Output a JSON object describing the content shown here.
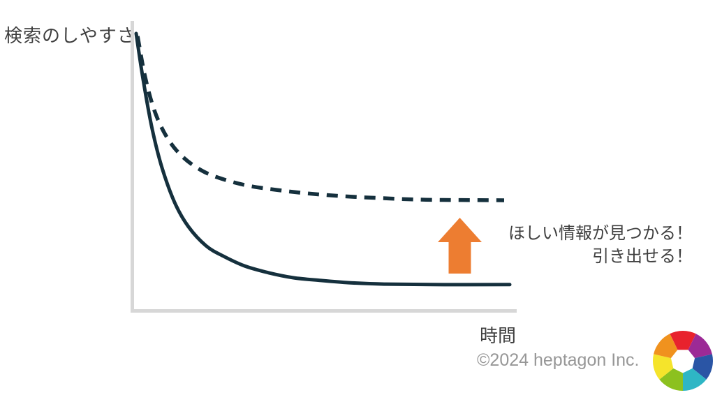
{
  "page": {
    "background": "#ffffff"
  },
  "chart_data": {
    "type": "line",
    "title": "",
    "xlabel": "時間",
    "ylabel": "検索のしやすさ",
    "x_range": [
      0,
      1
    ],
    "y_range": [
      0,
      1
    ],
    "axes_numeric": false,
    "tick_labels": "none",
    "grid": false,
    "legend": "none",
    "axis_color": "#d7d7d7",
    "series": [
      {
        "name": "solid-curve",
        "style": "solid",
        "color": "#15303d",
        "points": [
          [
            0,
            1.0
          ],
          [
            0.019,
            0.83
          ],
          [
            0.043,
            0.653
          ],
          [
            0.069,
            0.514
          ],
          [
            0.103,
            0.387
          ],
          [
            0.14,
            0.299
          ],
          [
            0.187,
            0.23
          ],
          [
            0.234,
            0.192
          ],
          [
            0.29,
            0.157
          ],
          [
            0.355,
            0.132
          ],
          [
            0.421,
            0.114
          ],
          [
            0.495,
            0.104
          ],
          [
            0.57,
            0.096
          ],
          [
            0.664,
            0.091
          ],
          [
            0.794,
            0.089
          ],
          [
            1.0,
            0.089
          ]
        ]
      },
      {
        "name": "dashed-curve",
        "style": "dashed",
        "color": "#15303d",
        "dash": [
          16,
          11
        ],
        "points": [
          [
            0.004,
            0.99
          ],
          [
            0.024,
            0.843
          ],
          [
            0.05,
            0.716
          ],
          [
            0.084,
            0.62
          ],
          [
            0.125,
            0.552
          ],
          [
            0.178,
            0.501
          ],
          [
            0.234,
            0.471
          ],
          [
            0.299,
            0.448
          ],
          [
            0.374,
            0.433
          ],
          [
            0.458,
            0.42
          ],
          [
            0.551,
            0.41
          ],
          [
            0.654,
            0.403
          ],
          [
            0.776,
            0.397
          ],
          [
            0.985,
            0.395
          ]
        ]
      }
    ],
    "annotation": {
      "lines": [
        "ほしい情報が見つかる！",
        "引き出せる！"
      ],
      "arrow_direction": "up",
      "arrow_color": "#ED7D31",
      "text_color": "#3f3f3f"
    }
  },
  "footer": {
    "copyright": "©2024 heptagon Inc.",
    "copyright_color": "#979797"
  },
  "logo": {
    "label": "heptagon-color-wheel",
    "segment_colors_clockwise_from_top": [
      "#e8222d",
      "#9c2a96",
      "#2a55a5",
      "#2eb6c5",
      "#8cc11f",
      "#f5e42b",
      "#f0921e"
    ]
  }
}
